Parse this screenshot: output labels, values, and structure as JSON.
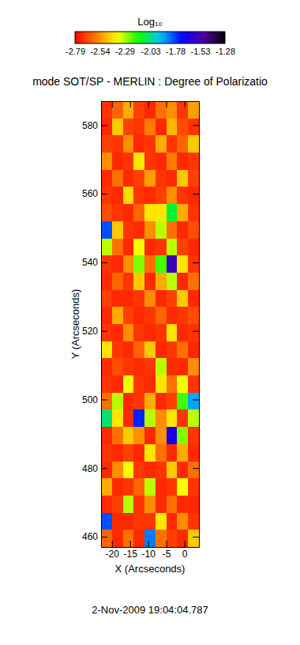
{
  "chart_data": {
    "type": "heatmap",
    "title": "mode SOT/SP - MERLIN : Degree of Polarizatio",
    "x_label": "X (Arcseconds)",
    "y_label": "Y (Arcseconds)",
    "annotation": "2-Nov-2009 19:04:04.787",
    "x": [
      -21.5,
      -18.5,
      -15.5,
      -12.5,
      -9.5,
      -6.5,
      -3.5,
      -0.5,
      2.5
    ],
    "y": [
      584.5,
      579.5,
      574.5,
      569.5,
      564.5,
      559.5,
      554.5,
      549.5,
      544.5,
      539.5,
      534.5,
      529.5,
      524.5,
      519.5,
      514.5,
      509.5,
      504.5,
      499.5,
      494.5,
      489.5,
      484.5,
      479.5,
      474.5,
      469.5,
      464.5,
      459.5
    ],
    "z": [
      [
        -2.7,
        -2.62,
        -2.5,
        -2.68,
        -2.72,
        -2.6,
        -2.55,
        -2.7,
        -2.52
      ],
      [
        -2.72,
        -2.45,
        -2.68,
        -2.7,
        -2.58,
        -2.72,
        -2.48,
        -2.66,
        -2.7
      ],
      [
        -2.68,
        -2.7,
        -2.55,
        -2.72,
        -2.7,
        -2.5,
        -2.7,
        -2.62,
        -2.45
      ],
      [
        -2.55,
        -2.72,
        -2.7,
        -2.4,
        -2.7,
        -2.72,
        -2.58,
        -2.72,
        -2.7
      ],
      [
        -2.72,
        -2.6,
        -2.72,
        -2.68,
        -2.52,
        -2.7,
        -2.72,
        -2.45,
        -2.68
      ],
      [
        -2.7,
        -2.72,
        -2.42,
        -2.7,
        -2.72,
        -2.68,
        -2.55,
        -2.7,
        -2.72
      ],
      [
        -2.66,
        -2.7,
        -2.72,
        -2.62,
        -2.4,
        -2.4,
        -2.1,
        -2.5,
        -2.7
      ],
      [
        -1.8,
        -2.45,
        -2.7,
        -2.72,
        -2.55,
        -2.3,
        -2.6,
        -2.72,
        -2.66
      ],
      [
        -2.3,
        -2.6,
        -2.72,
        -2.35,
        -2.72,
        -2.7,
        -2.3,
        -2.68,
        -2.72
      ],
      [
        -2.7,
        -2.72,
        -2.55,
        -2.25,
        -2.6,
        -2.2,
        -1.55,
        -2.4,
        -2.7
      ],
      [
        -2.72,
        -2.62,
        -2.7,
        -2.45,
        -2.72,
        -2.5,
        -2.3,
        -2.72,
        -2.6
      ],
      [
        -2.68,
        -2.72,
        -2.72,
        -2.7,
        -2.55,
        -2.72,
        -2.68,
        -2.45,
        -2.72
      ],
      [
        -2.72,
        -2.5,
        -2.68,
        -2.72,
        -2.7,
        -2.62,
        -2.72,
        -2.7,
        -2.66
      ],
      [
        -2.7,
        -2.72,
        -2.55,
        -2.7,
        -2.72,
        -2.7,
        -2.4,
        -2.72,
        -2.7
      ],
      [
        -2.4,
        -2.7,
        -2.72,
        -2.62,
        -2.45,
        -2.72,
        -2.7,
        -2.6,
        -2.72
      ],
      [
        -2.72,
        -2.66,
        -2.7,
        -2.72,
        -2.7,
        -2.3,
        -2.72,
        -2.72,
        -2.55
      ],
      [
        -2.7,
        -2.72,
        -2.35,
        -2.7,
        -2.72,
        -2.4,
        -2.6,
        -2.35,
        -2.7
      ],
      [
        -2.6,
        -2.3,
        -2.72,
        -2.7,
        -2.5,
        -2.72,
        -2.68,
        -2.2,
        -1.9
      ],
      [
        -2.05,
        -2.4,
        -2.72,
        -1.75,
        -2.3,
        -2.55,
        -2.4,
        -2.7,
        -2.3
      ],
      [
        -2.72,
        -2.6,
        -2.45,
        -2.55,
        -2.72,
        -2.55,
        -1.65,
        -2.25,
        -2.7
      ],
      [
        -2.7,
        -2.72,
        -2.68,
        -2.72,
        -2.4,
        -2.6,
        -2.72,
        -2.5,
        -2.72
      ],
      [
        -2.72,
        -2.55,
        -2.35,
        -2.7,
        -2.72,
        -2.7,
        -2.45,
        -2.72,
        -2.6
      ],
      [
        -2.5,
        -2.72,
        -2.7,
        -2.62,
        -2.3,
        -2.72,
        -2.7,
        -2.35,
        -2.7
      ],
      [
        -2.72,
        -2.68,
        -2.3,
        -2.7,
        -2.55,
        -2.72,
        -2.6,
        -2.72,
        -2.72
      ],
      [
        -1.8,
        -2.72,
        -2.72,
        -2.7,
        -2.7,
        -2.4,
        -2.72,
        -2.55,
        -2.7
      ],
      [
        -2.62,
        -2.72,
        -2.6,
        -2.72,
        -1.85,
        -2.6,
        -2.68,
        -2.72,
        -2.45
      ]
    ],
    "xlim": [
      -23,
      4
    ],
    "ylim": [
      457,
      587
    ],
    "xticks": [
      -20,
      -15,
      -10,
      -5,
      0
    ],
    "yticks": [
      460,
      480,
      500,
      520,
      540,
      560,
      580
    ],
    "colorbar": {
      "title": "Log₁₀",
      "range": [
        -2.79,
        -1.28
      ],
      "ticks": [
        -2.79,
        -2.54,
        -2.29,
        -2.03,
        -1.78,
        -1.53,
        -1.28
      ]
    }
  }
}
